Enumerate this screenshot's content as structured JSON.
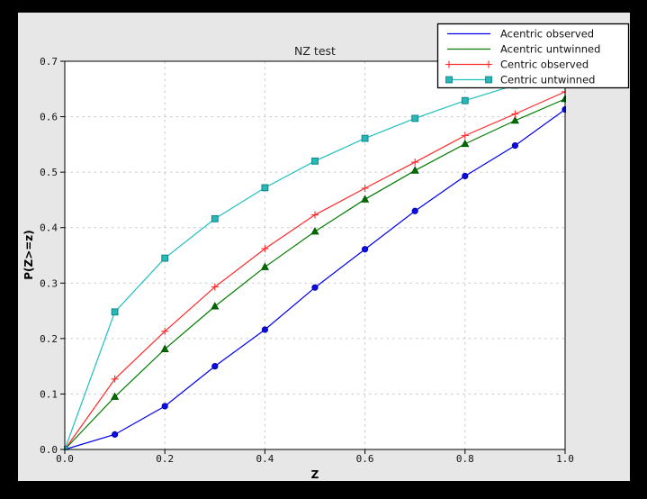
{
  "window": {
    "outer_background": "#000000",
    "figure_background": "#e7e7e7",
    "plot_background": "#ffffff",
    "spine_color": "#000000",
    "grid_color": "#c8c8c8"
  },
  "chart_data": {
    "type": "line",
    "title": "NZ test",
    "xlabel": "Z",
    "ylabel": "P(Z>=z)",
    "xlim": [
      0.0,
      1.0
    ],
    "ylim": [
      0.0,
      0.7
    ],
    "xticks": [
      "0.0",
      "0.2",
      "0.4",
      "0.6",
      "0.8",
      "1.0"
    ],
    "yticks": [
      "0.0",
      "0.1",
      "0.2",
      "0.3",
      "0.4",
      "0.5",
      "0.6",
      "0.7"
    ],
    "grid": "dashed light-gray; vertical lines every 0.2, horizontal lines every 0.1",
    "legend_position": "upper right, box overlapping top-right of plot",
    "x": [
      0.0,
      0.1,
      0.2,
      0.3,
      0.4,
      0.5,
      0.6,
      0.7,
      0.8,
      0.9,
      1.0
    ],
    "series": [
      {
        "name": "Acentric observed",
        "color": "#0000ee",
        "marker": "circle",
        "marker_fill": "#0d0de0",
        "marker_edge": "#0000a8",
        "legend_markers": false,
        "values": [
          0.0,
          0.027,
          0.078,
          0.15,
          0.216,
          0.292,
          0.361,
          0.43,
          0.493,
          0.548,
          0.613
        ]
      },
      {
        "name": "Acentric untwinned",
        "color": "#007d00",
        "marker": "triangle",
        "marker_fill": "#006b00",
        "marker_edge": "#005500",
        "legend_markers": false,
        "values": [
          0.0,
          0.095,
          0.181,
          0.258,
          0.329,
          0.393,
          0.451,
          0.503,
          0.551,
          0.593,
          0.632
        ]
      },
      {
        "name": "Centric observed",
        "color": "#ff2a2a",
        "marker": "plus",
        "marker_fill": "#ff2a2a",
        "marker_edge": "#ff2a2a",
        "legend_markers": true,
        "values": [
          0.0,
          0.127,
          0.213,
          0.293,
          0.362,
          0.423,
          0.471,
          0.518,
          0.566,
          0.605,
          0.645
        ]
      },
      {
        "name": "Centric untwinned",
        "color": "#1fbfbf",
        "marker": "square",
        "marker_fill": "#2ab7b7",
        "marker_edge": "#0c8989",
        "legend_markers": true,
        "values": [
          0.0,
          0.248,
          0.345,
          0.416,
          0.472,
          0.52,
          0.561,
          0.597,
          0.629,
          0.657,
          0.683
        ]
      }
    ]
  }
}
